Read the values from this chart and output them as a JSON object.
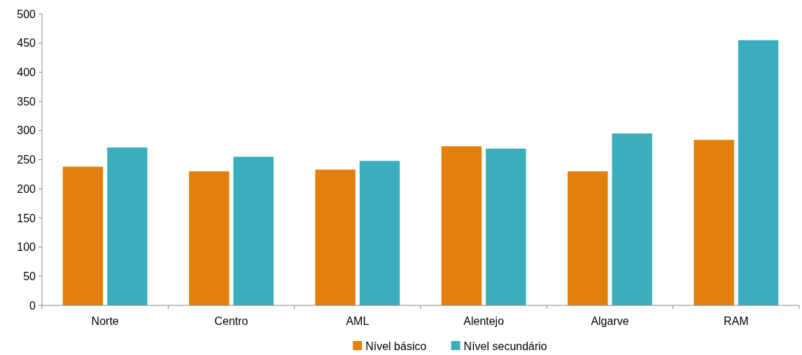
{
  "chart_data": {
    "type": "bar",
    "categories": [
      "Norte",
      "Centro",
      "AML",
      "Alentejo",
      "Algarve",
      "RAM"
    ],
    "series": [
      {
        "name": "Nível básico",
        "color": "#e37f0c",
        "values": [
          238,
          230,
          233,
          273,
          230,
          284
        ]
      },
      {
        "name": "Nível secundário",
        "color": "#3aaebd",
        "values": [
          271,
          255,
          248,
          269,
          295,
          455
        ]
      }
    ],
    "ylim": [
      0,
      500
    ],
    "yticks": [
      0,
      50,
      100,
      150,
      200,
      250,
      300,
      350,
      400,
      450,
      500
    ],
    "grid": false,
    "legend": "bottom"
  }
}
